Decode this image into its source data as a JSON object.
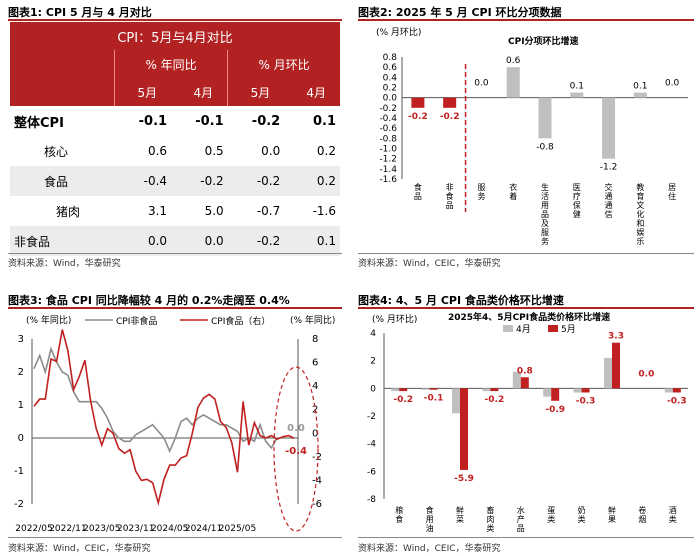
{
  "panel1": {
    "title": "图表1:  CPI 5 月与 4 月对比",
    "header": "CPI：5月与4月对比",
    "col_groups": [
      "% 年同比",
      "% 月环比"
    ],
    "months": [
      "5月",
      "4月",
      "5月",
      "4月"
    ],
    "rows": [
      {
        "label": "整体CPI",
        "bold": true,
        "values": [
          "-0.1",
          "-0.1",
          "-0.2",
          "0.1"
        ]
      },
      {
        "label": "核心",
        "values": [
          "0.6",
          "0.5",
          "0.0",
          "0.2"
        ]
      },
      {
        "label": "食品",
        "values": [
          "-0.4",
          "-0.2",
          "-0.2",
          "0.2"
        ]
      },
      {
        "label": "猪肉",
        "values": [
          "3.1",
          "5.0",
          "-0.7",
          "-1.6"
        ]
      },
      {
        "label": "非食品",
        "values": [
          "0.0",
          "0.0",
          "-0.2",
          "0.1"
        ]
      }
    ],
    "source": "资料来源：Wind，华泰研究"
  },
  "panel2": {
    "title": "图表2:  2025 年 5 月 CPI 环比分项数据",
    "source": "资料来源：Wind，CEIC，华泰研究"
  },
  "panel3": {
    "title": "图表3:  食品 CPI 同比降幅较 4 月的 0.2%走阔至 0.4%",
    "source": "资料来源：Wind，CEIC，华泰研究"
  },
  "panel4": {
    "title": "图表4:  4、5 月 CPI 食品类价格环比增速",
    "source": "资料来源：Wind，CEIC，华泰研究"
  },
  "colors": {
    "red": "#c0201f",
    "gray": "#bfbfbf",
    "darkgray": "#8c8c8c",
    "header": "#b22222"
  },
  "chart_data": [
    {
      "type": "bar",
      "title": "CPI分项环比增速",
      "ylabel": "(% 月环比)",
      "ylim": [
        -1.6,
        0.8
      ],
      "yticks": [
        "0.8",
        "0.6",
        "0.4",
        "0.2",
        "0.0",
        "-0.2",
        "-0.4",
        "-0.6",
        "-0.8",
        "-1.0",
        "-1.2",
        "-1.4",
        "-1.6"
      ],
      "categories": [
        "食品",
        "非食品",
        "服务",
        "衣着",
        "生活用品及服务",
        "医疗保健",
        "交通通信",
        "教育文化和娱乐",
        "居住"
      ],
      "values": [
        -0.2,
        -0.2,
        0.0,
        0.6,
        -0.8,
        0.1,
        -1.2,
        0.1,
        0.0
      ],
      "labels": [
        "-0.2",
        "-0.2",
        "0.0",
        "0.6",
        "-0.8",
        "0.1",
        "-1.2",
        "0.1",
        "0.0"
      ]
    },
    {
      "type": "line",
      "legend": [
        "CPI非食品",
        "CPI食品（右）"
      ],
      "ylabel_left": "(% 年同比)",
      "ylabel_right": "(% 年同比)",
      "ylim_left": [
        -2,
        3
      ],
      "ylim_right": [
        -6,
        8
      ],
      "yticks_left": [
        "3",
        "2",
        "1",
        "0",
        "-1",
        "-2"
      ],
      "yticks_right": [
        "8",
        "6",
        "4",
        "2",
        "0",
        "-2",
        "-4",
        "-6"
      ],
      "xticks": [
        "2022/05",
        "2022/11",
        "2023/05",
        "2023/11",
        "2024/05",
        "2024/11",
        "2025/05"
      ],
      "series": [
        {
          "name": "CPI非食品",
          "axis": "left",
          "values": [
            2.1,
            2.5,
            2.0,
            2.7,
            2.3,
            2.0,
            1.9,
            1.4,
            1.1,
            1.1,
            1.1,
            1.1,
            0.9,
            0.6,
            0.2,
            0.0,
            -0.1,
            -0.1,
            0.1,
            0.2,
            0.3,
            0.4,
            0.2,
            0.0,
            -0.4,
            0.0,
            0.5,
            0.6,
            0.4,
            0.6,
            0.7,
            0.6,
            0.5,
            0.4,
            0.4,
            0.3,
            0.2,
            -0.1,
            0.0,
            -0.1,
            0.4,
            -0.1,
            -0.3,
            0.0,
            0.0,
            0.0,
            0.0
          ]
        },
        {
          "name": "CPI食品（右）",
          "axis": "right",
          "values": [
            2.3,
            2.9,
            2.9,
            6.3,
            6.1,
            8.8,
            7.0,
            3.7,
            4.8,
            6.2,
            2.8,
            0.4,
            -1.0,
            0.4,
            0.0,
            -1.3,
            -1.7,
            -1.4,
            -3.2,
            -4.0,
            -3.9,
            -4.2,
            -5.9,
            -3.9,
            -2.7,
            -2.7,
            -2.1,
            -1.9,
            0.0,
            2.2,
            3.0,
            3.3,
            2.9,
            1.0,
            0.5,
            -0.8,
            -3.3,
            2.7,
            -1.0,
            0.9,
            -0.2,
            -0.4,
            -0.2,
            -0.5,
            -0.3,
            -0.2,
            -0.4
          ]
        }
      ],
      "end_labels": [
        "0.0",
        "-0.4"
      ]
    },
    {
      "type": "bar",
      "title": "2025年4、5月CPI食品类价格环比增速",
      "ylabel": "(% 月环比)",
      "ylim": [
        -8,
        4
      ],
      "yticks": [
        "4",
        "2",
        "0",
        "-2",
        "-4",
        "-6",
        "-8"
      ],
      "categories": [
        "粮食",
        "食用油",
        "鲜菜",
        "畜肉类",
        "水产品",
        "蛋类",
        "奶类",
        "鲜果",
        "卷烟",
        "酒类"
      ],
      "series": [
        {
          "name": "4月",
          "values": [
            -0.2,
            -0.1,
            -1.8,
            -0.2,
            1.2,
            -0.6,
            -0.3,
            2.2,
            0.0,
            -0.3
          ]
        },
        {
          "name": "5月",
          "values": [
            -0.2,
            -0.1,
            -5.9,
            -0.2,
            0.8,
            -0.9,
            -0.3,
            3.3,
            0.0,
            -0.3
          ]
        }
      ],
      "labels": [
        "-0.2",
        "-0.1",
        "-5.9",
        "-0.2",
        "0.8",
        "-0.9",
        "-0.3",
        "3.3",
        "0.0",
        "-0.3"
      ]
    }
  ]
}
